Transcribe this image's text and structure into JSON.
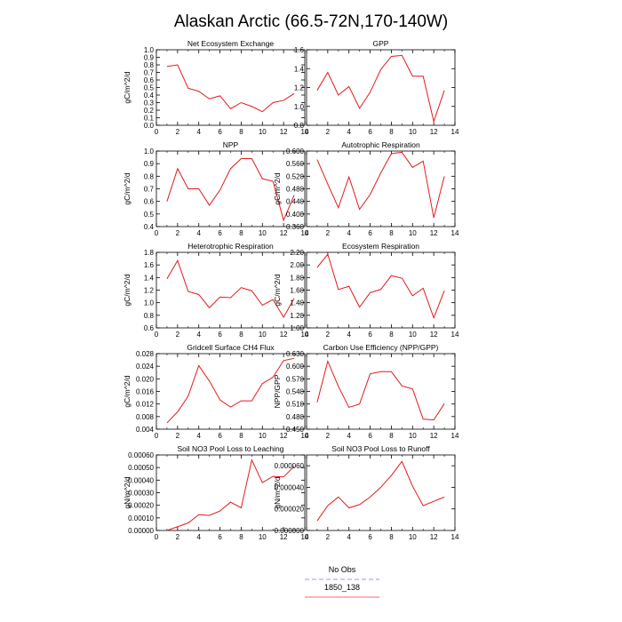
{
  "figure": {
    "title": "Alaskan Arctic (66.5-72N,170-140W)"
  },
  "legend": {
    "placement": "bottom-center",
    "entries": [
      {
        "name": "No Obs",
        "color": "#9999ff",
        "style": "dashed"
      },
      {
        "name": "1850_138",
        "color": "#ff6666",
        "style": "solid"
      }
    ]
  },
  "chart_data": [
    {
      "type": "line",
      "title": "Net Ecosystem Exchange",
      "ylabel": "gC/m^2/d",
      "xlim": [
        0,
        14
      ],
      "ylim": [
        0.0,
        1.0
      ],
      "xticks": [
        0,
        2,
        4,
        6,
        8,
        10,
        12,
        14
      ],
      "yticks": [
        "0.0",
        "0.1",
        "0.2",
        "0.3",
        "0.4",
        "0.5",
        "0.6",
        "0.7",
        "0.8",
        "0.9",
        "1.0"
      ],
      "series": [
        {
          "color": "#e41a1c",
          "x": [
            1,
            2,
            3,
            4,
            5,
            6,
            7,
            8,
            9,
            10,
            11,
            12,
            13
          ],
          "y": [
            0.78,
            0.8,
            0.49,
            0.45,
            0.35,
            0.39,
            0.22,
            0.3,
            0.25,
            0.18,
            0.3,
            0.33,
            0.42
          ]
        }
      ]
    },
    {
      "type": "line",
      "title": "GPP",
      "ylabel": "",
      "xlim": [
        0,
        14
      ],
      "ylim": [
        0.8,
        1.6
      ],
      "xticks": [
        0,
        2,
        4,
        6,
        8,
        10,
        12,
        14
      ],
      "yticks": [
        "0.8",
        "1.0",
        "1.2",
        "1.4",
        "1.6"
      ],
      "series": [
        {
          "color": "#e41a1c",
          "x": [
            1,
            2,
            3,
            4,
            5,
            6,
            7,
            8,
            9,
            10,
            11,
            12,
            13
          ],
          "y": [
            1.17,
            1.36,
            1.12,
            1.21,
            0.98,
            1.15,
            1.39,
            1.53,
            1.54,
            1.32,
            1.32,
            0.84,
            1.17
          ]
        }
      ]
    },
    {
      "type": "line",
      "title": "NPP",
      "ylabel": "gC/m^2/d",
      "xlim": [
        0,
        14
      ],
      "ylim": [
        0.4,
        1.0
      ],
      "xticks": [
        0,
        2,
        4,
        6,
        8,
        10,
        12,
        14
      ],
      "yticks": [
        "0.4",
        "0.5",
        "0.6",
        "0.7",
        "0.8",
        "0.9",
        "1.0"
      ],
      "series": [
        {
          "color": "#e41a1c",
          "x": [
            1,
            2,
            3,
            4,
            5,
            6,
            7,
            8,
            9,
            10,
            11,
            12,
            13
          ],
          "y": [
            0.6,
            0.86,
            0.7,
            0.7,
            0.57,
            0.69,
            0.86,
            0.94,
            0.94,
            0.78,
            0.76,
            0.45,
            0.65
          ]
        }
      ]
    },
    {
      "type": "line",
      "title": "Autotrophic Respiration",
      "ylabel": "gC/m^2/d",
      "xlim": [
        0,
        14
      ],
      "ylim": [
        0.36,
        0.6
      ],
      "xticks": [
        0,
        2,
        4,
        6,
        8,
        10,
        12,
        14
      ],
      "yticks": [
        "0.360",
        "0.400",
        "0.440",
        "0.480",
        "0.520",
        "0.560",
        "0.600"
      ],
      "series": [
        {
          "color": "#e41a1c",
          "x": [
            1,
            2,
            3,
            4,
            5,
            6,
            7,
            8,
            9,
            10,
            11,
            12,
            13
          ],
          "y": [
            0.573,
            0.495,
            0.42,
            0.518,
            0.415,
            0.462,
            0.53,
            0.592,
            0.596,
            0.548,
            0.568,
            0.388,
            0.52
          ]
        }
      ]
    },
    {
      "type": "line",
      "title": "Heterotrophic Respiration",
      "ylabel": "gC/m^2/d",
      "xlim": [
        0,
        14
      ],
      "ylim": [
        0.6,
        1.8
      ],
      "xticks": [
        0,
        2,
        4,
        6,
        8,
        10,
        12,
        14
      ],
      "yticks": [
        "0.6",
        "0.8",
        "1.0",
        "1.2",
        "1.4",
        "1.6",
        "1.8"
      ],
      "series": [
        {
          "color": "#e41a1c",
          "x": [
            1,
            2,
            3,
            4,
            5,
            6,
            7,
            8,
            9,
            10,
            11,
            12,
            13
          ],
          "y": [
            1.38,
            1.67,
            1.18,
            1.13,
            0.92,
            1.09,
            1.08,
            1.24,
            1.19,
            0.96,
            1.05,
            0.77,
            1.07
          ]
        }
      ]
    },
    {
      "type": "line",
      "title": "Ecosystem Respiration",
      "ylabel": "gC/m^2/d",
      "xlim": [
        0,
        14
      ],
      "ylim": [
        1.0,
        2.2
      ],
      "xticks": [
        0,
        2,
        4,
        6,
        8,
        10,
        12,
        14
      ],
      "yticks": [
        "1.00",
        "1.20",
        "1.40",
        "1.60",
        "1.80",
        "2.00",
        "2.20"
      ],
      "series": [
        {
          "color": "#e41a1c",
          "x": [
            1,
            2,
            3,
            4,
            5,
            6,
            7,
            8,
            9,
            10,
            11,
            12,
            13
          ],
          "y": [
            1.96,
            2.17,
            1.61,
            1.66,
            1.33,
            1.56,
            1.61,
            1.83,
            1.79,
            1.51,
            1.63,
            1.16,
            1.59
          ]
        }
      ]
    },
    {
      "type": "line",
      "title": "Gridcell Surface CH4 Flux",
      "ylabel": "gC/m^2/d",
      "xlim": [
        0,
        14
      ],
      "ylim": [
        0.004,
        0.028
      ],
      "xticks": [
        0,
        2,
        4,
        6,
        8,
        10,
        12,
        14
      ],
      "yticks": [
        "0.004",
        "0.008",
        "0.012",
        "0.016",
        "0.020",
        "0.024",
        "0.028"
      ],
      "series": [
        {
          "color": "#e41a1c",
          "x": [
            1,
            2,
            3,
            4,
            5,
            6,
            7,
            8,
            9,
            10,
            11,
            12,
            13
          ],
          "y": [
            0.006,
            0.0095,
            0.0145,
            0.0242,
            0.0193,
            0.0133,
            0.011,
            0.013,
            0.013,
            0.0185,
            0.0205,
            0.0258,
            0.0265
          ]
        }
      ]
    },
    {
      "type": "line",
      "title": "Carbon Use Efficiency (NPP/GPP)",
      "ylabel": "NPP/GPP",
      "xlim": [
        0,
        14
      ],
      "ylim": [
        0.45,
        0.63
      ],
      "xticks": [
        0,
        2,
        4,
        6,
        8,
        10,
        12,
        14
      ],
      "yticks": [
        "0.450",
        "0.480",
        "0.510",
        "0.540",
        "0.570",
        "0.600",
        "0.630"
      ],
      "series": [
        {
          "color": "#e41a1c",
          "x": [
            1,
            2,
            3,
            4,
            5,
            6,
            7,
            8,
            9,
            10,
            11,
            12,
            13
          ],
          "y": [
            0.514,
            0.612,
            0.552,
            0.502,
            0.51,
            0.582,
            0.587,
            0.587,
            0.553,
            0.546,
            0.474,
            0.472,
            0.511
          ]
        }
      ]
    },
    {
      "type": "line",
      "title": "Soil NO3 Pool Loss to Leaching",
      "ylabel": "gN/m^2/d",
      "xlim": [
        0,
        14
      ],
      "ylim": [
        0.0,
        0.0006
      ],
      "xticks": [
        0,
        2,
        4,
        6,
        8,
        10,
        12,
        14
      ],
      "yticks": [
        "0.00000",
        "0.00010",
        "0.00020",
        "0.00030",
        "0.00040",
        "0.00050",
        "0.00060"
      ],
      "series": [
        {
          "color": "#e41a1c",
          "x": [
            1,
            2,
            3,
            4,
            5,
            6,
            7,
            8,
            9,
            10,
            11,
            12,
            13
          ],
          "y": [
            0.0,
            3e-05,
            6e-05,
            0.000125,
            0.00012,
            0.000155,
            0.000225,
            0.00018,
            0.00056,
            0.00038,
            0.00043,
            0.000425,
            0.00051
          ]
        }
      ]
    },
    {
      "type": "line",
      "title": "Soil NO3 Pool Loss to Runoff",
      "ylabel": "gN/m^2/d",
      "xlim": [
        0,
        14
      ],
      "ylim": [
        0.0,
        7e-05
      ],
      "xticks": [
        0,
        2,
        4,
        6,
        8,
        10,
        12,
        14
      ],
      "yticks": [
        "0.000000",
        "0.000020",
        "0.000040",
        "0.000060"
      ],
      "series": [
        {
          "color": "#e41a1c",
          "x": [
            1,
            2,
            3,
            4,
            5,
            6,
            7,
            8,
            9,
            10,
            11,
            12,
            13
          ],
          "y": [
            9e-06,
            2.3e-05,
            3.1e-05,
            2.1e-05,
            2.4e-05,
            3.1e-05,
            4e-05,
            5.1e-05,
            6.4e-05,
            4.1e-05,
            2.3e-05,
            2.7e-05,
            3.1e-05
          ]
        }
      ]
    }
  ]
}
